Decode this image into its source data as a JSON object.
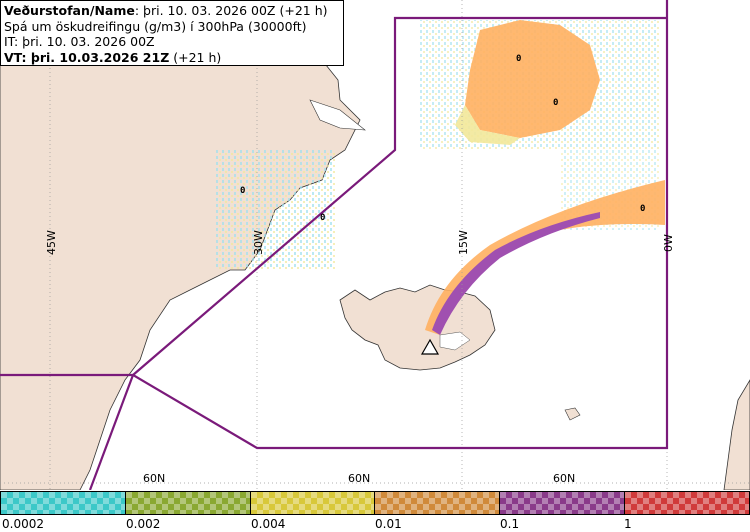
{
  "header": {
    "line1_bold": "Veðurstofan/Name",
    "line1_rest": ": þri. 10. 03. 2026 00Z (+21 h)",
    "line2": "Spá um öskudreifingu (g/m3) í 300hPa (30000ft)",
    "line3": "IT: þri. 10. 03. 2026 00Z",
    "line4_bold": "VT: þri. 10.03.2026 21Z",
    "line4_rest": " (+21 h)"
  },
  "grid_labels": {
    "lon_45w": "45W",
    "lon_30w": "30W",
    "lon_15w": "15W",
    "lon_0w": "0W",
    "lat_60n_a": "60N",
    "lat_60n_b": "60N",
    "lat_60n_c": "60N"
  },
  "value_labels": [
    "0",
    "0",
    "0",
    "0",
    "0"
  ],
  "legend": {
    "colors": [
      "#3cc8c8",
      "#8aa831",
      "#d8c83a",
      "#d08a3a",
      "#8a3a8a",
      "#d03a3a"
    ],
    "labels": [
      "0.0002",
      "0.002",
      "0.004",
      "0.01",
      "0.1",
      "1"
    ]
  }
}
